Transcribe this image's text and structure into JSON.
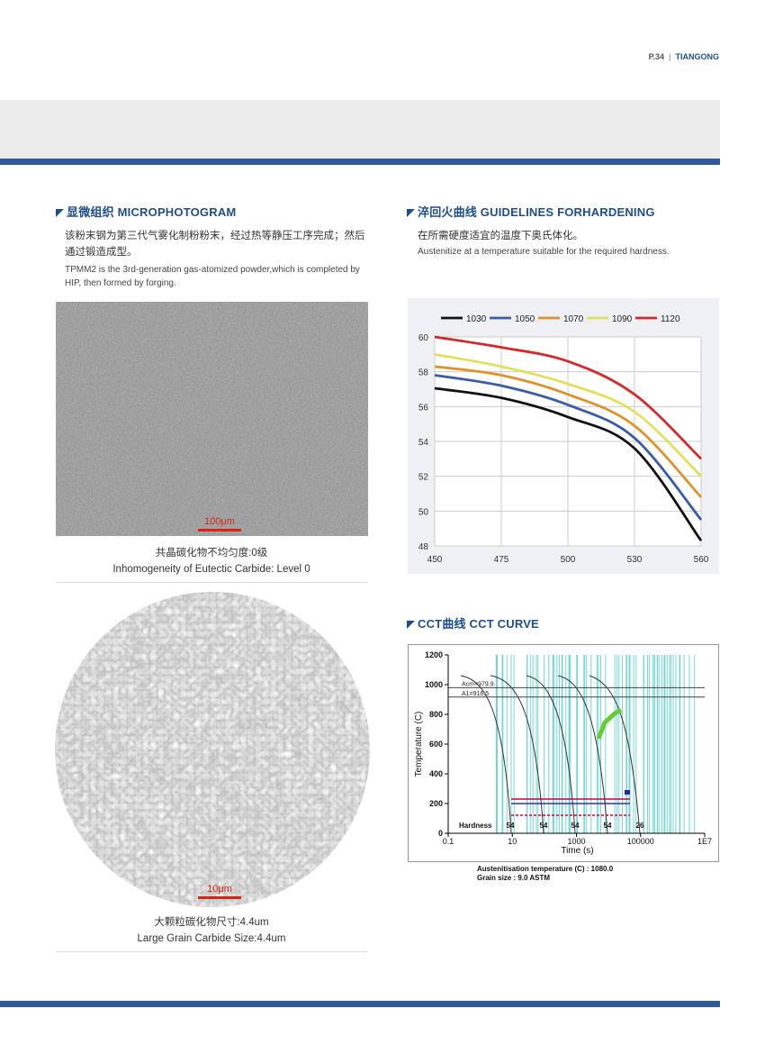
{
  "header": {
    "page": "P.34",
    "brand": "TIANGONG"
  },
  "microphotogram": {
    "heading": "显微组织 MICROPHOTOGRAM",
    "text_zh": "该粉末钢为第三代气雾化制粉粉末，经过热等静压工序完成；然后通过锻造成型。",
    "text_en": "TPMM2 is the 3rd-generation gas-atomized powder,which is completed by HIP, then formed by forging.",
    "images": [
      {
        "scale": "100μm",
        "caption_zh": "共晶碳化物不均匀度:0级",
        "caption_en": "Inhomogeneity of Eutectic Carbide: Level 0"
      },
      {
        "scale": "10μm",
        "caption_zh": "大颗粒碳化物尺寸:4.4um",
        "caption_en": "Large Grain Carbide Size:4.4um"
      }
    ]
  },
  "hardening": {
    "heading": "淬回火曲线 GUIDELINES FORHARDENING",
    "text_zh": "在所需硬度适宜的温度下奥氏体化。",
    "text_en": "Austenitize at a temperature suitable for the required hardness."
  },
  "chart_data": {
    "type": "line",
    "categories": [
      450,
      475,
      500,
      530,
      560
    ],
    "series": [
      {
        "name": "1030",
        "color": "#111111",
        "values": [
          57.05,
          56.5,
          55.4,
          53.6,
          48.3
        ]
      },
      {
        "name": "1050",
        "color": "#3a5ba8",
        "values": [
          57.8,
          57.2,
          56.1,
          54.2,
          49.5
        ]
      },
      {
        "name": "1070",
        "color": "#e0922a",
        "values": [
          58.3,
          57.8,
          56.7,
          54.9,
          50.8
        ]
      },
      {
        "name": "1090",
        "color": "#e2e05a",
        "values": [
          59.0,
          58.3,
          57.3,
          55.7,
          52.0
        ]
      },
      {
        "name": "1120",
        "color": "#d42a2a",
        "values": [
          60.0,
          59.4,
          58.6,
          56.7,
          53.0
        ]
      }
    ],
    "ylim": [
      48,
      60
    ],
    "yticks": [
      48,
      50,
      52,
      54,
      56,
      58,
      60
    ],
    "grid": true,
    "legend": "top"
  },
  "cct": {
    "heading": "CCT曲线 CCT CURVE",
    "chart": {
      "type": "cct",
      "xlabel": "Time (s)",
      "ylabel": "Temperature (C)",
      "log_x": true,
      "xlim": [
        0.1,
        10000000
      ],
      "xticks": [
        0.1,
        10,
        1000,
        100000,
        {
          "value": 10000000,
          "label": "1E7"
        }
      ],
      "ylim": [
        0,
        1200
      ],
      "yticks": [
        0,
        200,
        400,
        600,
        800,
        1000,
        1200
      ],
      "critical_lines": [
        {
          "label": "Acm=979.9",
          "value": 979.9
        },
        {
          "label": "A1=916.5",
          "value": 916.5
        }
      ],
      "hardness_label": "Hardness",
      "hardness": [
        54,
        54,
        54,
        54,
        26
      ],
      "notes": [
        "Austenitisation temperature (C) : 1080.0",
        "Grain size : 9.0 ASTM"
      ]
    }
  }
}
